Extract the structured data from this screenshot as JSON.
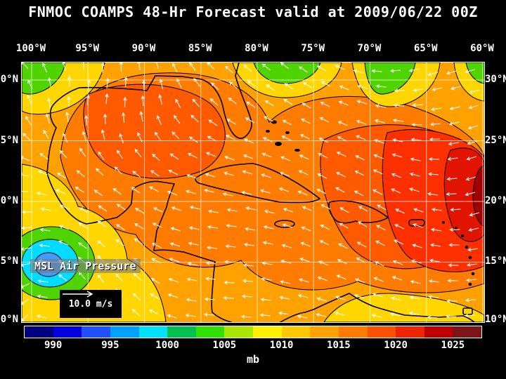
{
  "title": "FNMOC COAMPS 48-Hr Forecast valid at 2009/06/22 00Z",
  "axes": {
    "lon_labels": [
      "100°W",
      "95°W",
      "90°W",
      "85°W",
      "80°W",
      "75°W",
      "70°W",
      "65°W",
      "60°W"
    ],
    "lat_labels_left": [
      "30°N",
      "25°N",
      "20°N",
      "15°N",
      "10°N"
    ],
    "lat_labels_right": [
      "30°N",
      "25°N",
      "20°N",
      "15°N",
      "10°N"
    ]
  },
  "overlays": {
    "field_label": "MSL Air Pressure",
    "wind_scale_label": "10.0 m/s"
  },
  "colorbar": {
    "units_label": "mb",
    "tick_labels": [
      "990",
      "995",
      "1000",
      "1005",
      "1010",
      "1015",
      "1020",
      "1025"
    ],
    "range_mb": [
      987.5,
      1027.5
    ],
    "segment_colors": [
      "#000082",
      "#0000e0",
      "#2050ff",
      "#00a0ff",
      "#00e0ff",
      "#00c050",
      "#30e000",
      "#a8e800",
      "#fff000",
      "#ffc800",
      "#ffa200",
      "#ff7c00",
      "#ff5000",
      "#f02400",
      "#c00000",
      "#7c1616"
    ]
  },
  "map_palette": {
    "base_orange": "#ffa200",
    "dark_orange": "#ff7c00",
    "orange_red": "#ff5a00",
    "red": "#ff3000",
    "dark_red": "#e01400",
    "maroon": "#9e0000",
    "yellow": "#ffd600",
    "green": "#4fd400",
    "cyan": "#00dcff",
    "blue": "#3f9dff"
  },
  "chart_data": {
    "type": "heatmap",
    "title": "FNMOC COAMPS 48-Hr Forecast valid at 2009/06/22 00Z",
    "field": "MSL Air Pressure",
    "units": "mb",
    "lon_range": [
      "100°W",
      "60°W"
    ],
    "lat_range": [
      "10°N",
      "30°N"
    ],
    "colorbar_ticks_mb": [
      990,
      995,
      1000,
      1005,
      1010,
      1015,
      1020,
      1025
    ],
    "wind_vector_scale": "10.0 m/s",
    "features": [
      {
        "name": "subtropical high",
        "approx_location": "western Atlantic near 62°W 20°N",
        "approx_value_mb": "1020-1026"
      },
      {
        "name": "low pressure center",
        "approx_location": "near 99°W 15°N (East Pacific, lower-left)",
        "approx_value_mb": "992-998"
      },
      {
        "name": "broad ridge",
        "approx_location": "Gulf of Mexico and Caribbean",
        "approx_value_mb": "1010-1016"
      },
      {
        "name": "weaker pressure band",
        "approx_location": "southwest and along 30°N (yellow/green)",
        "approx_value_mb": "1000-1010"
      }
    ]
  }
}
